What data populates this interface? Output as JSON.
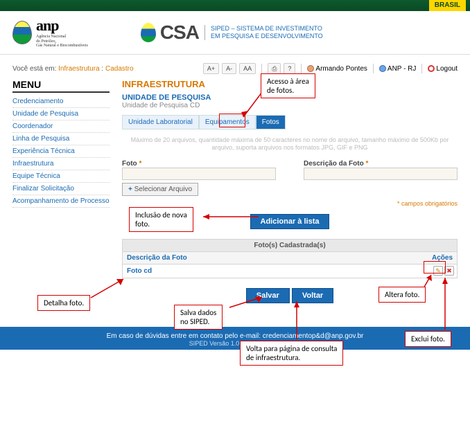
{
  "top": {
    "brasil": "BRASIL"
  },
  "header": {
    "anp": {
      "name": "anp",
      "sub1": "Agência Nacional",
      "sub2": "do Petróleo,",
      "sub3": "Gás Natural e Biocombustíveis"
    },
    "csa": {
      "name": "CSA",
      "sub1": "SIPED – SISTEMA DE INVESTIMENTO",
      "sub2": "EM PESQUISA E DESENVOLVIMENTO"
    }
  },
  "breadcrumb": {
    "prefix": "Você está em:",
    "a": "Infraestrutura",
    "b": "Cadastro"
  },
  "toolbar": {
    "font_up": "A+",
    "font_dn": "A-",
    "font_rs": "AA",
    "user": "Armando Pontes",
    "org": "ANP - RJ",
    "logout": "Logout"
  },
  "menu": {
    "title": "MENU",
    "items": [
      {
        "label": "Credenciamento",
        "lvl": 0
      },
      {
        "label": "Unidade de Pesquisa",
        "lvl": 1
      },
      {
        "label": "Coordenador",
        "lvl": 2
      },
      {
        "label": "Linha de Pesquisa",
        "lvl": 2
      },
      {
        "label": "Experiência Técnica",
        "lvl": 2
      },
      {
        "label": "Infraestrutura",
        "lvl": 2
      },
      {
        "label": "Equipe Técnica",
        "lvl": 2
      },
      {
        "label": "Finalizar Solicitação",
        "lvl": 2
      },
      {
        "label": "Acompanhamento de Processo",
        "lvl": 2
      }
    ]
  },
  "page": {
    "title": "INFRAESTRUTURA",
    "subtitle": "UNIDADE DE PESQUISA",
    "subsub": "Unidade de Pesquisa CD",
    "tabs": {
      "a": "Unidade Laboratorial",
      "b": "Equipamentos",
      "c": "Fotos"
    },
    "hint": "Máximo de 20 arquivos, quantidade máxima de 50 caracteres no nome do arquivo, tamanho máximo de 500Kb por arquivo, suporta arquivos nos formatos JPG, GIF e PNG",
    "foto_label": "Foto",
    "desc_label": "Descrição da Foto",
    "req_mark": "*",
    "foto_value": "",
    "desc_value": "",
    "select_btn": "Selecionar Arquivo",
    "select_plus": "+",
    "req_note": "* campos obrigatórios",
    "add_btn": "Adicionar à lista",
    "grid_title": "Foto(s) Cadastrada(s)",
    "col_desc": "Descrição da Foto",
    "col_act": "Ações",
    "row_desc": "Foto cd",
    "edit_glyph": "✎",
    "del_glyph": "✖",
    "save_btn": "Salvar",
    "back_btn": "Voltar"
  },
  "callouts": {
    "c1": "Acesso à área\nde fotos.",
    "c2": "Inclusão de nova\nfoto.",
    "c3": "Detalha foto.",
    "c4": "Salva dados\nno SIPED.",
    "c5": "Volta para página de consulta\nde infraestrutura.",
    "c6": "Altera foto.",
    "c7": "Exclui foto."
  },
  "footer": {
    "line1": "Em caso de dúvidas entre em contato pelo e-mail: credenciamentop&d@anp.gov.br",
    "line2": "SIPED Versão 1.0.9-SNAPSHOT"
  },
  "colors": {
    "accent_orange": "#d77800",
    "accent_blue": "#1b6bb3",
    "callout_red": "#d40000",
    "footer_bg": "#1b6bb3"
  }
}
